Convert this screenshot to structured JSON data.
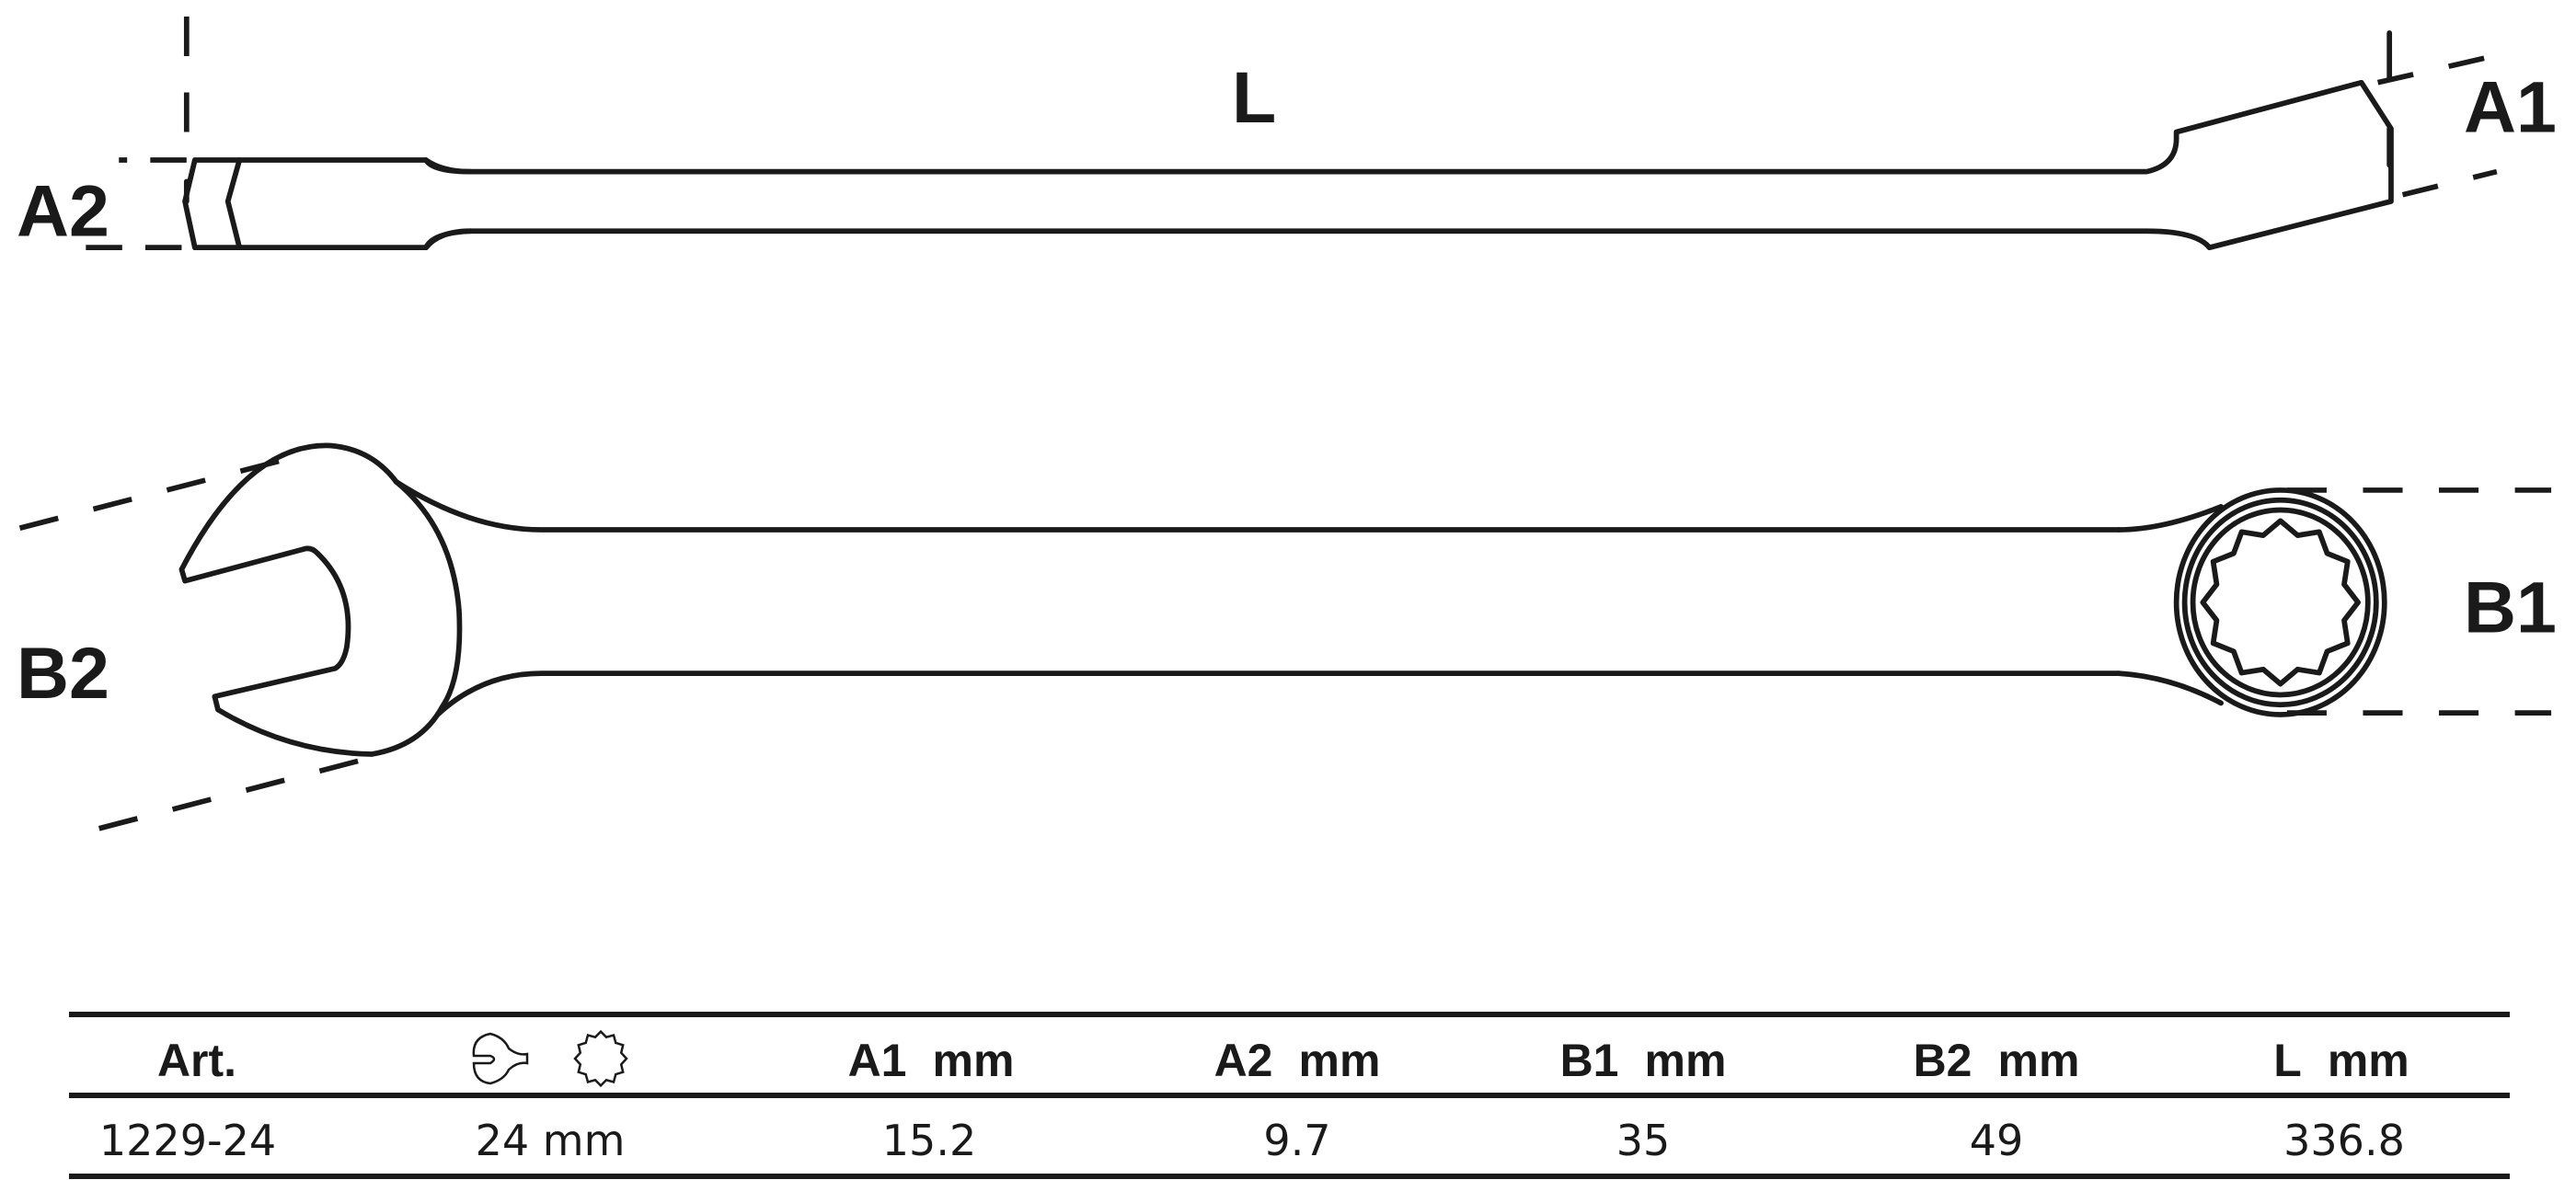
{
  "labels": {
    "L": "L",
    "A1": "A1",
    "A2": "A2",
    "B1": "B1",
    "B2": "B2"
  },
  "table": {
    "headers": [
      {
        "key": "Art."
      },
      {
        "icon": "open-end-and-12-point-ring-icon"
      },
      {
        "key": "A1",
        "unit": "mm"
      },
      {
        "key": "A2",
        "unit": "mm"
      },
      {
        "key": "B1",
        "unit": "mm"
      },
      {
        "key": "B2",
        "unit": "mm"
      },
      {
        "key": "L",
        "unit": "mm"
      }
    ],
    "rows": [
      {
        "art": "1229-24",
        "size": "24 mm",
        "A1": "15.2",
        "A2": "9.7",
        "B1": "35",
        "B2": "49",
        "L": "336.8"
      }
    ]
  }
}
